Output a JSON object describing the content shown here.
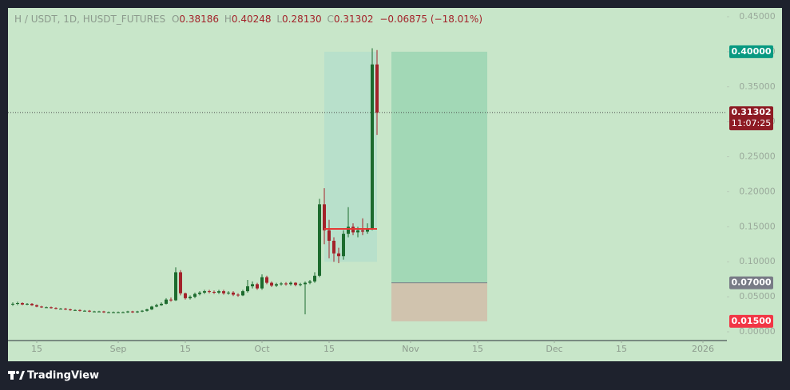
{
  "chart_data": {
    "type": "candlestick",
    "header": {
      "symbol": "H / USDT, 1D, HUSDT_FUTURES",
      "open_label": "O",
      "open": "0.38186",
      "high_label": "H",
      "high": "0.40248",
      "low_label": "L",
      "low": "0.28130",
      "close_label": "C",
      "close": "0.31302",
      "change": "−0.06875 (−18.01%)"
    },
    "brand": "TradingView",
    "x": [
      "08-10",
      "08-11",
      "08-12",
      "08-13",
      "08-14",
      "08-15",
      "08-16",
      "08-17",
      "08-18",
      "08-19",
      "08-20",
      "08-21",
      "08-22",
      "08-23",
      "08-24",
      "08-25",
      "08-26",
      "08-27",
      "08-28",
      "08-29",
      "08-30",
      "08-31",
      "09-01",
      "09-02",
      "09-03",
      "09-04",
      "09-05",
      "09-06",
      "09-07",
      "09-08",
      "09-09",
      "09-10",
      "09-11",
      "09-12",
      "09-13",
      "09-14",
      "09-15",
      "09-16",
      "09-17",
      "09-18",
      "09-19",
      "09-20",
      "09-21",
      "09-22",
      "09-23",
      "09-24",
      "09-25",
      "09-26",
      "09-27",
      "09-28",
      "09-29",
      "09-30",
      "10-01",
      "10-02",
      "10-03",
      "10-04",
      "10-05",
      "10-06",
      "10-07",
      "10-08",
      "10-09",
      "10-10",
      "10-11",
      "10-12",
      "10-13",
      "10-14",
      "10-15",
      "10-16",
      "10-17",
      "10-18",
      "10-19",
      "10-20",
      "10-21",
      "10-22",
      "10-23",
      "10-24",
      "10-25"
    ],
    "open": [
      0.039,
      0.04,
      0.041,
      0.039,
      0.04,
      0.038,
      0.036,
      0.035,
      0.035,
      0.034,
      0.033,
      0.033,
      0.032,
      0.031,
      0.031,
      0.03,
      0.03,
      0.029,
      0.029,
      0.029,
      0.028,
      0.028,
      0.028,
      0.028,
      0.028,
      0.029,
      0.028,
      0.029,
      0.03,
      0.032,
      0.036,
      0.038,
      0.04,
      0.046,
      0.045,
      0.085,
      0.055,
      0.048,
      0.05,
      0.054,
      0.056,
      0.058,
      0.057,
      0.056,
      0.058,
      0.055,
      0.056,
      0.053,
      0.052,
      0.058,
      0.065,
      0.068,
      0.062,
      0.078,
      0.07,
      0.066,
      0.068,
      0.069,
      0.068,
      0.07,
      0.067,
      0.068,
      0.07,
      0.072,
      0.08,
      0.182,
      0.145,
      0.13,
      0.112,
      0.108,
      0.14,
      0.15,
      0.142,
      0.145,
      0.143,
      0.148,
      0.38186
    ],
    "high": [
      0.042,
      0.043,
      0.042,
      0.041,
      0.041,
      0.039,
      0.037,
      0.036,
      0.036,
      0.035,
      0.034,
      0.034,
      0.033,
      0.032,
      0.032,
      0.031,
      0.031,
      0.03,
      0.03,
      0.03,
      0.029,
      0.029,
      0.029,
      0.029,
      0.03,
      0.03,
      0.03,
      0.031,
      0.033,
      0.037,
      0.04,
      0.042,
      0.048,
      0.049,
      0.092,
      0.088,
      0.056,
      0.052,
      0.056,
      0.058,
      0.06,
      0.06,
      0.059,
      0.06,
      0.06,
      0.058,
      0.058,
      0.055,
      0.06,
      0.074,
      0.072,
      0.07,
      0.082,
      0.08,
      0.072,
      0.07,
      0.071,
      0.071,
      0.072,
      0.071,
      0.07,
      0.072,
      0.074,
      0.085,
      0.19,
      0.205,
      0.16,
      0.135,
      0.12,
      0.145,
      0.178,
      0.155,
      0.15,
      0.162,
      0.155,
      0.405,
      0.40248
    ],
    "low": [
      0.037,
      0.038,
      0.038,
      0.038,
      0.037,
      0.035,
      0.034,
      0.034,
      0.033,
      0.032,
      0.032,
      0.031,
      0.03,
      0.03,
      0.029,
      0.029,
      0.028,
      0.028,
      0.028,
      0.027,
      0.027,
      0.027,
      0.027,
      0.027,
      0.027,
      0.027,
      0.027,
      0.028,
      0.029,
      0.031,
      0.035,
      0.037,
      0.039,
      0.043,
      0.044,
      0.052,
      0.046,
      0.046,
      0.048,
      0.052,
      0.054,
      0.055,
      0.054,
      0.054,
      0.053,
      0.053,
      0.051,
      0.05,
      0.051,
      0.056,
      0.062,
      0.06,
      0.06,
      0.068,
      0.064,
      0.064,
      0.066,
      0.066,
      0.066,
      0.065,
      0.065,
      0.025,
      0.068,
      0.07,
      0.078,
      0.125,
      0.105,
      0.1,
      0.098,
      0.103,
      0.135,
      0.138,
      0.135,
      0.138,
      0.14,
      0.145,
      0.2813
    ],
    "close": [
      0.04,
      0.041,
      0.039,
      0.04,
      0.038,
      0.036,
      0.035,
      0.035,
      0.034,
      0.033,
      0.033,
      0.032,
      0.031,
      0.031,
      0.03,
      0.03,
      0.029,
      0.029,
      0.029,
      0.028,
      0.028,
      0.028,
      0.028,
      0.028,
      0.029,
      0.028,
      0.029,
      0.03,
      0.032,
      0.036,
      0.038,
      0.04,
      0.046,
      0.045,
      0.085,
      0.055,
      0.048,
      0.05,
      0.054,
      0.056,
      0.058,
      0.057,
      0.056,
      0.058,
      0.055,
      0.056,
      0.053,
      0.052,
      0.058,
      0.065,
      0.068,
      0.062,
      0.078,
      0.07,
      0.066,
      0.068,
      0.069,
      0.068,
      0.07,
      0.067,
      0.068,
      0.07,
      0.072,
      0.08,
      0.182,
      0.145,
      0.13,
      0.112,
      0.108,
      0.14,
      0.15,
      0.142,
      0.145,
      0.143,
      0.148,
      0.38186,
      0.31302
    ],
    "up_color": "#1d6b2e",
    "down_color": "#a3222a",
    "xlim": [
      "08-09",
      "01-06"
    ],
    "xticks": [
      {
        "value": "08-15",
        "label": "15"
      },
      {
        "value": "09-01",
        "label": "Sep"
      },
      {
        "value": "09-15",
        "label": "15"
      },
      {
        "value": "10-01",
        "label": "Oct"
      },
      {
        "value": "10-15",
        "label": "15"
      },
      {
        "value": "11-01",
        "label": "Nov"
      },
      {
        "value": "11-15",
        "label": "15"
      },
      {
        "value": "12-01",
        "label": "Dec"
      },
      {
        "value": "12-15",
        "label": "15"
      },
      {
        "value": "01-01",
        "label": "2026"
      }
    ],
    "ylim": [
      -0.0125,
      0.4625
    ],
    "yticks": [
      {
        "value": 0,
        "label": "0.00000"
      },
      {
        "value": 0.05,
        "label": "0.05000"
      },
      {
        "value": 0.1,
        "label": "0.10000"
      },
      {
        "value": 0.15,
        "label": "0.15000"
      },
      {
        "value": 0.2,
        "label": "0.20000"
      },
      {
        "value": 0.25,
        "label": "0.25000"
      },
      {
        "value": 0.3,
        "label": "0.30000"
      },
      {
        "value": 0.35,
        "label": "0.35000"
      },
      {
        "value": 0.4,
        "label": "0.40000"
      },
      {
        "value": 0.45,
        "label": "0.45000"
      }
    ],
    "zone": {
      "start": "10-14",
      "end": "10-25",
      "top": 0.4,
      "bottom": 0.1,
      "color": "#b4dfcc"
    },
    "level": {
      "value": 0.147,
      "start": "10-14",
      "end": "10-25",
      "color": "#e53935"
    },
    "position": {
      "start": "10-28",
      "end": "11-17",
      "entry": 0.07,
      "target": 0.4,
      "stop": 0.015,
      "target_color": "#a2d8b6",
      "stop_color": "#d0c3ae"
    },
    "current_price": {
      "value": 0.31302,
      "label": "0.31302",
      "countdown": "11:07:25",
      "color": "#8e1b24"
    },
    "price_labels": [
      {
        "value": 0.4,
        "label": "0.40000",
        "color": "#089981"
      },
      {
        "value": 0.07,
        "label": "0.07000",
        "color": "#787b86"
      },
      {
        "value": 0.015,
        "label": "0.01500",
        "color": "#f23645"
      }
    ]
  }
}
